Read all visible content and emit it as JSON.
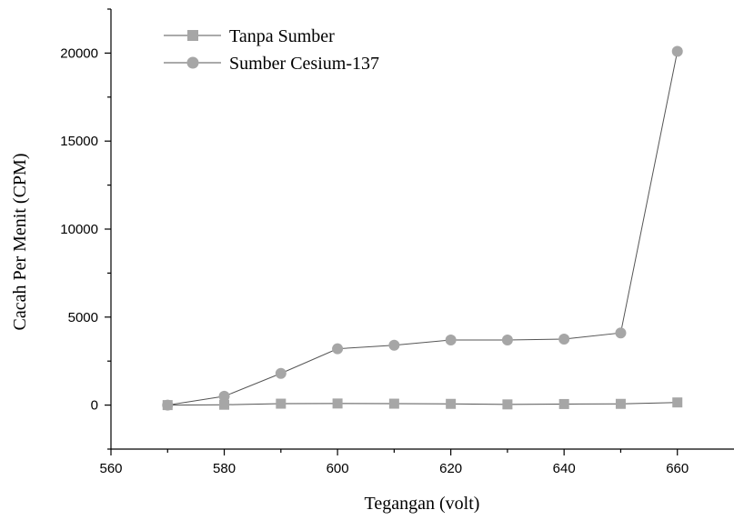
{
  "chart_data": {
    "type": "line",
    "title": "",
    "xlabel": "Tegangan (volt)",
    "ylabel": "Cacah Per Menit (CPM)",
    "xlim": [
      560,
      670
    ],
    "ylim": [
      -2500,
      22500
    ],
    "xticks": [
      560,
      580,
      600,
      620,
      640,
      660
    ],
    "yticks": [
      0,
      5000,
      10000,
      15000,
      20000
    ],
    "legend_position": "top-left",
    "grid": false,
    "x": [
      570,
      580,
      590,
      600,
      610,
      620,
      630,
      640,
      650,
      660
    ],
    "series": [
      {
        "name": "Tanpa Sumber",
        "marker": "square",
        "color": "#a6a6a6",
        "line_color": "#555555",
        "values": [
          0,
          20,
          80,
          90,
          80,
          70,
          40,
          60,
          70,
          150
        ]
      },
      {
        "name": "Sumber Cesium-137",
        "marker": "circle",
        "color": "#a6a6a6",
        "line_color": "#555555",
        "values": [
          0,
          500,
          1800,
          3200,
          3400,
          3700,
          3700,
          3750,
          4100,
          20100
        ]
      }
    ]
  }
}
